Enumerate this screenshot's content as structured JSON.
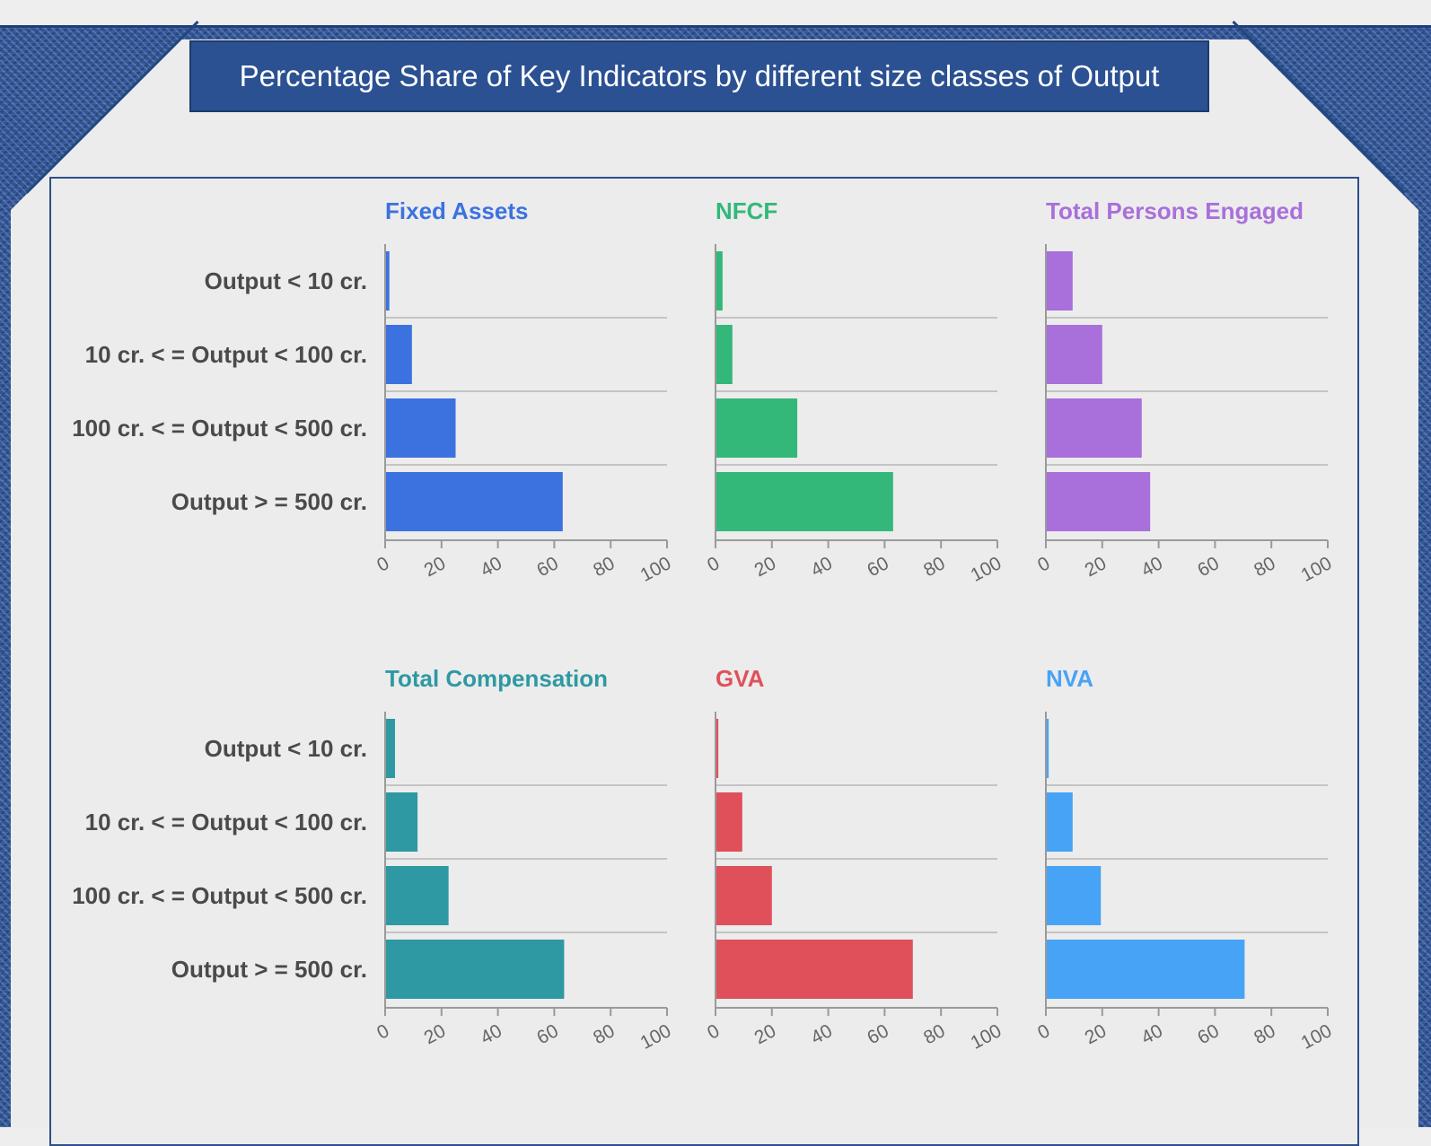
{
  "title": "Percentage Share of Key Indicators by different size classes of Output",
  "chart_data": [
    {
      "type": "bar",
      "orientation": "horizontal",
      "title": "Fixed Assets",
      "color": "#3c72e0",
      "categories": [
        "Output < 10 cr.",
        "10 cr. < = Output < 100 cr.",
        "100 cr. < = Output < 500 cr.",
        "Output > = 500 cr."
      ],
      "values": [
        1.5,
        9.5,
        25,
        63
      ],
      "xlim": [
        0,
        100
      ],
      "xticks": [
        "0",
        "20",
        "40",
        "60",
        "80",
        "100"
      ]
    },
    {
      "type": "bar",
      "orientation": "horizontal",
      "title": "NFCF",
      "color": "#33b87a",
      "categories": [
        "Output < 10 cr.",
        "10 cr. < = Output < 100 cr.",
        "100 cr. < = Output < 500 cr.",
        "Output > = 500 cr."
      ],
      "values": [
        2.5,
        6,
        29,
        63
      ],
      "xlim": [
        0,
        100
      ],
      "xticks": [
        "0",
        "20",
        "40",
        "60",
        "80",
        "100"
      ]
    },
    {
      "type": "bar",
      "orientation": "horizontal",
      "title": "Total Persons Engaged",
      "color": "#a96fdb",
      "categories": [
        "Output < 10 cr.",
        "10 cr. < = Output < 100 cr.",
        "100 cr. < = Output < 500 cr.",
        "Output > = 500 cr."
      ],
      "values": [
        9.5,
        20,
        34,
        37
      ],
      "xlim": [
        0,
        100
      ],
      "xticks": [
        "0",
        "20",
        "40",
        "60",
        "80",
        "100"
      ]
    },
    {
      "type": "bar",
      "orientation": "horizontal",
      "title": "Total Compensation",
      "color": "#2e99a3",
      "categories": [
        "Output < 10 cr.",
        "10 cr. < = Output < 100 cr.",
        "100 cr. < = Output < 500 cr.",
        "Output > = 500 cr."
      ],
      "values": [
        3.5,
        11.5,
        22.5,
        63.5
      ],
      "xlim": [
        0,
        100
      ],
      "xticks": [
        "0",
        "20",
        "40",
        "60",
        "80",
        "100"
      ]
    },
    {
      "type": "bar",
      "orientation": "horizontal",
      "title": "GVA",
      "color": "#e0505a",
      "categories": [
        "Output < 10 cr.",
        "10 cr. < = Output < 100 cr.",
        "100 cr. < = Output < 500 cr.",
        "Output > = 500 cr."
      ],
      "values": [
        1,
        9.5,
        20,
        70
      ],
      "xlim": [
        0,
        100
      ],
      "xticks": [
        "0",
        "20",
        "40",
        "60",
        "80",
        "100"
      ]
    },
    {
      "type": "bar",
      "orientation": "horizontal",
      "title": "NVA",
      "color": "#47a3f5",
      "categories": [
        "Output < 10 cr.",
        "10 cr. < = Output < 100 cr.",
        "100 cr. < = Output < 500 cr.",
        "Output > = 500 cr."
      ],
      "values": [
        1,
        9.5,
        19.5,
        70.5
      ],
      "xlim": [
        0,
        100
      ],
      "xticks": [
        "0",
        "20",
        "40",
        "60",
        "80",
        "100"
      ]
    }
  ]
}
